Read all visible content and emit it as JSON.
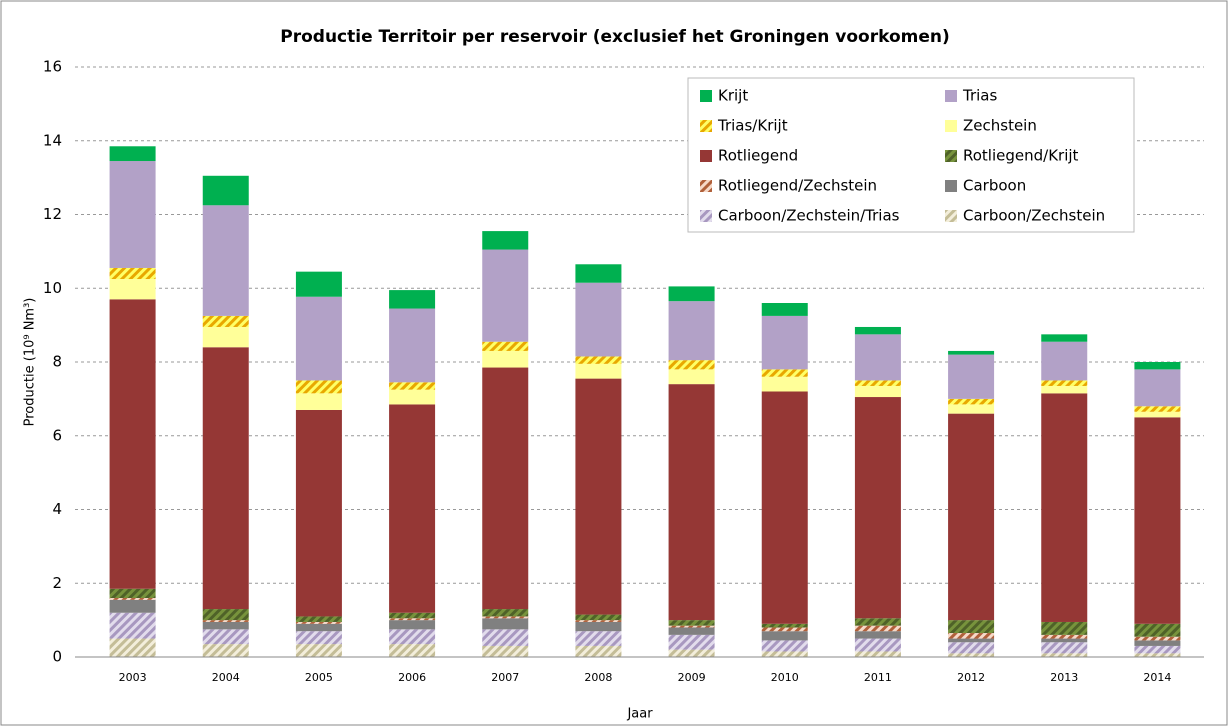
{
  "chart_data": {
    "type": "stacked_bar",
    "title": "Productie Territoir per reservoir (exclusief het Groningen voorkomen)",
    "y_label": "Productie (10⁹ Nm³)",
    "x_label": "Jaar",
    "categories": [
      "2003",
      "2004",
      "2005",
      "2006",
      "2007",
      "2008",
      "2009",
      "2010",
      "2011",
      "2012",
      "2013",
      "2014"
    ],
    "ylim": [
      0,
      16
    ],
    "yticks": [
      0,
      2,
      4,
      6,
      8,
      10,
      12,
      14,
      16
    ],
    "grid": true,
    "legend": "top-right",
    "series": [
      {
        "name": "Carboon/Zechstein",
        "color": "#f3eedb",
        "hatch_color": "#c4bd97",
        "values": [
          0.5,
          0.35,
          0.35,
          0.35,
          0.3,
          0.3,
          0.2,
          0.15,
          0.15,
          0.1,
          0.1,
          0.1
        ]
      },
      {
        "name": "Carboon/Zechstein/Trias",
        "color": "#e2dcec",
        "hatch_color": "#a898c0",
        "values": [
          0.7,
          0.4,
          0.35,
          0.4,
          0.45,
          0.4,
          0.4,
          0.3,
          0.35,
          0.3,
          0.3,
          0.2
        ]
      },
      {
        "name": "Carboon",
        "color": "#808080",
        "values": [
          0.35,
          0.2,
          0.2,
          0.25,
          0.3,
          0.25,
          0.2,
          0.25,
          0.2,
          0.1,
          0.1,
          0.15
        ]
      },
      {
        "name": "Rotliegend/Zechstein",
        "color": "#f6d9c8",
        "hatch_color": "#b0603a",
        "values": [
          0.05,
          0.05,
          0.05,
          0.05,
          0.05,
          0.05,
          0.05,
          0.1,
          0.15,
          0.15,
          0.1,
          0.1
        ]
      },
      {
        "name": "Rotliegend/Krijt",
        "color": "#4f6228",
        "hatch_color": "#77933c",
        "values": [
          0.25,
          0.3,
          0.15,
          0.15,
          0.2,
          0.15,
          0.15,
          0.1,
          0.2,
          0.35,
          0.35,
          0.35
        ]
      },
      {
        "name": "Rotliegend",
        "color": "#953735",
        "values": [
          7.85,
          7.1,
          5.6,
          5.65,
          6.55,
          6.4,
          6.4,
          6.3,
          6.0,
          5.6,
          6.2,
          5.6
        ]
      },
      {
        "name": "Zechstein",
        "color": "#ffff99",
        "values": [
          0.55,
          0.55,
          0.45,
          0.4,
          0.45,
          0.4,
          0.4,
          0.4,
          0.3,
          0.25,
          0.2,
          0.15
        ]
      },
      {
        "name": "Trias/Krijt",
        "color": "#ffff66",
        "hatch_color": "#e8a800",
        "values": [
          0.3,
          0.3,
          0.35,
          0.2,
          0.25,
          0.2,
          0.25,
          0.2,
          0.15,
          0.15,
          0.15,
          0.15
        ]
      },
      {
        "name": "Trias",
        "color": "#b2a1c7",
        "values": [
          2.9,
          3.0,
          2.27,
          2.0,
          2.5,
          2.0,
          1.6,
          1.45,
          1.25,
          1.2,
          1.05,
          1.0
        ]
      },
      {
        "name": "Krijt",
        "color": "#00b050",
        "values": [
          0.4,
          0.8,
          0.68,
          0.5,
          0.5,
          0.5,
          0.4,
          0.35,
          0.2,
          0.1,
          0.2,
          0.2
        ]
      }
    ]
  }
}
